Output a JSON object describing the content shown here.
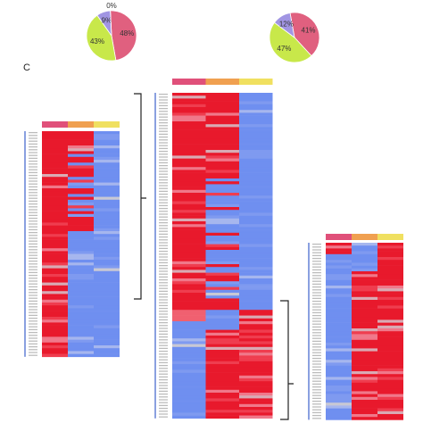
{
  "panel_label": "C",
  "chart_data": [
    {
      "type": "pie",
      "values": [
        48,
        43,
        9,
        0
      ],
      "value_labels": [
        "48%",
        "43%",
        "9%",
        "0%"
      ],
      "colors": [
        "#e0607f",
        "#c8e84a",
        "#a195e3",
        "#7a7ad8"
      ]
    },
    {
      "type": "pie",
      "values": [
        41,
        47,
        12
      ],
      "value_labels": [
        "41%",
        "47%",
        "12%"
      ],
      "colors": [
        "#e0607f",
        "#c8e84a",
        "#a195e3"
      ]
    }
  ]
}
